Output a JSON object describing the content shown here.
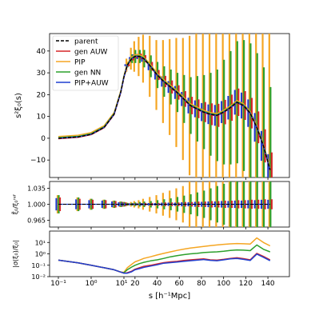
{
  "chart_data": {
    "type": "line",
    "xlabel": "s [h⁻¹Mpc]",
    "xticks": [
      "10⁻¹",
      "10⁰",
      "10¹",
      "20",
      "40",
      "60",
      "80",
      "100",
      "120",
      "140"
    ],
    "legend_placement": "top-left",
    "series": [
      {
        "name": "parent",
        "color": "#000000",
        "style": "dashed"
      },
      {
        "name": "gen AUW",
        "color": "#d62728",
        "style": "solid"
      },
      {
        "name": "PIP",
        "color": "#f5a623",
        "style": "solid"
      },
      {
        "name": "gen NN",
        "color": "#2ca02c",
        "style": "solid"
      },
      {
        "name": "PIP+AUW",
        "color": "#1f3fd0",
        "style": "solid"
      }
    ],
    "panels": [
      {
        "id": "top",
        "ylabel": "s²ξ₀(s)",
        "yticks": [
          "−10",
          "0",
          "10",
          "20",
          "30",
          "40"
        ],
        "ylim": [
          -18,
          48
        ],
        "x": [
          0.1,
          0.4,
          1.0,
          2.5,
          5,
          8,
          10,
          13,
          17,
          20,
          24,
          28,
          34,
          40,
          46,
          52,
          58,
          64,
          70,
          76,
          82,
          88,
          94,
          100,
          106,
          112,
          118,
          124,
          130,
          136,
          142
        ],
        "y": [
          0,
          0.6,
          1.8,
          5,
          11,
          21,
          28,
          33.5,
          36.5,
          37.5,
          37.5,
          36.5,
          33,
          29,
          26,
          23.5,
          21,
          18,
          15,
          13.5,
          12,
          11,
          10.5,
          12,
          14,
          16.5,
          15,
          11.5,
          5,
          -3.5,
          -14.5
        ],
        "errors": {
          "PIP": [
            0,
            0,
            0,
            0,
            0,
            0,
            0,
            3,
            5,
            7,
            9,
            11,
            14,
            16,
            19,
            22,
            25,
            28,
            32,
            36,
            40,
            44,
            48,
            52,
            56,
            60,
            64,
            68,
            72,
            76,
            80
          ],
          "gen NN": [
            0,
            0,
            0,
            0,
            0,
            0,
            0,
            1,
            2,
            3,
            3,
            4,
            5,
            6,
            7,
            8,
            9,
            11,
            13,
            15,
            17,
            19,
            21,
            24,
            26,
            28,
            30,
            32,
            34,
            36,
            38
          ],
          "gen AUW": [
            0,
            0,
            0,
            0,
            0,
            0,
            0,
            0.5,
            0.8,
            1,
            1.3,
            1.6,
            2,
            2.3,
            2.6,
            3,
            3.3,
            3.6,
            4,
            4.3,
            4.6,
            5,
            5.3,
            5.6,
            6,
            6.3,
            6.6,
            7,
            7.3,
            7.6,
            8
          ]
        }
      },
      {
        "id": "middle",
        "ylabel": "ξ̃₀/ξ₀ʳᵉᶠ",
        "yticks": [
          "0.965",
          "1.000",
          "1.035"
        ],
        "ylim": [
          0.95,
          1.05
        ],
        "x": [
          0.1,
          0.4,
          1.0,
          2.5,
          5,
          8,
          10,
          13,
          17,
          20,
          24,
          28,
          34,
          40,
          46,
          52,
          58,
          64,
          70,
          76,
          82,
          88,
          94,
          100,
          106,
          112,
          118,
          124,
          130,
          136,
          142
        ],
        "y": [
          1,
          1,
          1,
          1,
          1,
          1,
          1,
          1,
          1,
          1,
          1,
          1,
          1,
          1,
          1,
          1,
          1,
          1,
          1,
          1,
          1,
          1,
          1,
          1,
          1,
          1,
          1,
          1,
          1,
          1,
          1
        ],
        "errors": {
          "PIP": [
            0.02,
            0.015,
            0.012,
            0.01,
            0.008,
            0.006,
            0.005,
            0.004,
            0.005,
            0.007,
            0.009,
            0.012,
            0.016,
            0.02,
            0.025,
            0.03,
            0.035,
            0.04,
            0.05,
            0.06,
            0.07,
            0.08,
            0.09,
            0.1,
            0.11,
            0.12,
            0.13,
            0.14,
            0.15,
            0.16,
            0.17
          ],
          "gen NN": [
            0.02,
            0.015,
            0.012,
            0.01,
            0.008,
            0.006,
            0.005,
            0.003,
            0.003,
            0.004,
            0.005,
            0.006,
            0.007,
            0.009,
            0.011,
            0.013,
            0.016,
            0.019,
            0.022,
            0.026,
            0.03,
            0.035,
            0.04,
            0.045,
            0.05,
            0.055,
            0.06,
            0.065,
            0.07,
            0.075,
            0.08
          ],
          "gen AUW": [
            0.015,
            0.012,
            0.01,
            0.009,
            0.007,
            0.005,
            0.004,
            0.002,
            0.002,
            0.002,
            0.002,
            0.003,
            0.003,
            0.003,
            0.004,
            0.004,
            0.004,
            0.005,
            0.005,
            0.006,
            0.006,
            0.007,
            0.007,
            0.008,
            0.008,
            0.009,
            0.009,
            0.01,
            0.01,
            0.011,
            0.011
          ]
        }
      },
      {
        "id": "bottom",
        "ylabel": "|σ(ξ₀)/ξ₀|",
        "yscale": "log",
        "yticks": [
          "10⁻²",
          "10⁻¹",
          "10⁰",
          "10¹"
        ],
        "ylim": [
          0.01,
          100
        ],
        "x": [
          0.1,
          0.4,
          1.0,
          2.5,
          5,
          8,
          10,
          13,
          17,
          20,
          24,
          28,
          34,
          40,
          46,
          52,
          58,
          64,
          70,
          76,
          82,
          88,
          94,
          100,
          106,
          112,
          118,
          124,
          130,
          136,
          142
        ],
        "values": {
          "gen AUW": [
            0.28,
            0.16,
            0.1,
            0.06,
            0.04,
            0.025,
            0.02,
            0.022,
            0.03,
            0.045,
            0.06,
            0.08,
            0.1,
            0.13,
            0.17,
            0.2,
            0.22,
            0.26,
            0.3,
            0.33,
            0.36,
            0.3,
            0.28,
            0.33,
            0.4,
            0.45,
            0.38,
            0.3,
            1.1,
            0.6,
            0.3
          ],
          "PIP+AUW": [
            0.28,
            0.16,
            0.1,
            0.06,
            0.04,
            0.025,
            0.02,
            0.02,
            0.027,
            0.04,
            0.05,
            0.065,
            0.085,
            0.11,
            0.15,
            0.17,
            0.19,
            0.22,
            0.25,
            0.28,
            0.32,
            0.27,
            0.25,
            0.3,
            0.36,
            0.4,
            0.33,
            0.26,
            0.95,
            0.5,
            0.25
          ],
          "gen NN": [
            0.28,
            0.16,
            0.1,
            0.06,
            0.04,
            0.025,
            0.022,
            0.04,
            0.07,
            0.1,
            0.14,
            0.18,
            0.24,
            0.3,
            0.4,
            0.55,
            0.7,
            0.85,
            1.0,
            1.1,
            1.3,
            1.4,
            1.5,
            1.7,
            2.0,
            2.2,
            2.1,
            1.9,
            6.0,
            2.5,
            1.5
          ],
          "PIP": [
            0.28,
            0.16,
            0.1,
            0.06,
            0.04,
            0.025,
            0.024,
            0.06,
            0.12,
            0.2,
            0.28,
            0.4,
            0.55,
            0.8,
            1.1,
            1.5,
            2.0,
            2.6,
            3.2,
            3.8,
            4.5,
            5.2,
            6.0,
            6.8,
            7.5,
            8.0,
            7.6,
            7.2,
            25,
            10,
            5
          ]
        }
      }
    ]
  }
}
